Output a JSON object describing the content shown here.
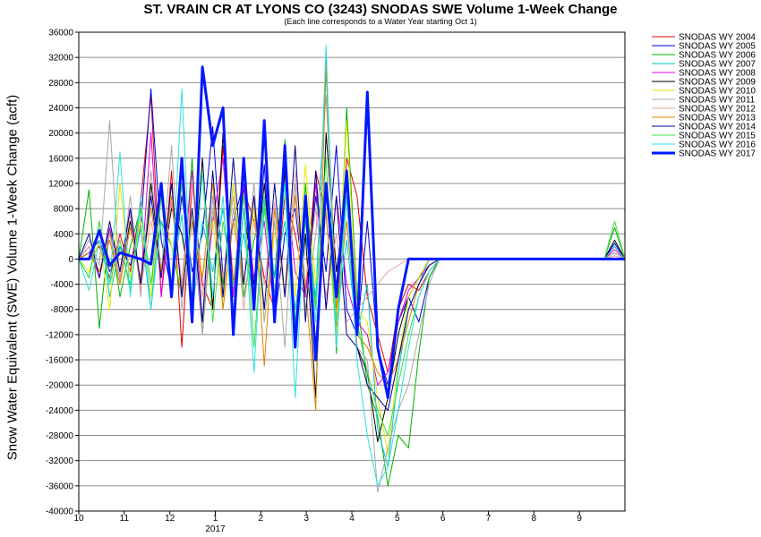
{
  "chart_data": {
    "type": "line",
    "title": "ST. VRAIN CR AT LYONS CO (3243) SNODAS SWE Volume 1-Week Change",
    "subtitle": "(Each line corresponds to a Water Year starting Oct 1)",
    "ylabel": "Snow Water Equivalent (SWE) Volume 1-Week Change (acft)",
    "xlabel": "",
    "ylim": [
      -40000,
      36000
    ],
    "y_ticks": [
      "36000",
      "32000",
      "28000",
      "24000",
      "20000",
      "16000",
      "12000",
      "8000",
      "4000",
      "0",
      "-4000",
      "-8000",
      "-12000",
      "-16000",
      "-20000",
      "-24000",
      "-28000",
      "-32000",
      "-36000",
      "-40000"
    ],
    "x_ticks": [
      "10",
      "11",
      "12",
      "1",
      "2",
      "3",
      "4",
      "5",
      "6",
      "7",
      "8",
      "9"
    ],
    "x_year_label": "2017",
    "grid": true,
    "legend_position": "right",
    "series": [
      {
        "name": "SNODAS WY 2004",
        "color": "#e00000",
        "width": 1,
        "values": [
          0,
          0,
          2000,
          -3000,
          4000,
          -2000,
          9000,
          26000,
          -6000,
          14000,
          -14000,
          12000,
          -4000,
          -8000,
          18000,
          -4000,
          11000,
          6000,
          -3000,
          -8000,
          10000,
          4000,
          -5000,
          14000,
          7000,
          -11000,
          16000,
          10000,
          -6000,
          -12000,
          -18000,
          -8000,
          -4000,
          -5000,
          -2000,
          0,
          0,
          0,
          0,
          0,
          0,
          0,
          0,
          0,
          0,
          0,
          0,
          0,
          0,
          0,
          0,
          0,
          2000,
          0
        ]
      },
      {
        "name": "SNODAS WY 2005",
        "color": "#0000e0",
        "width": 1,
        "values": [
          0,
          1000,
          3000,
          -2000,
          2000,
          -1000,
          5000,
          27000,
          3000,
          -5000,
          10000,
          -2000,
          4000,
          21000,
          -3000,
          6000,
          12000,
          -6000,
          15000,
          -10000,
          4000,
          8000,
          -6000,
          10000,
          -2000,
          18000,
          -8000,
          -12000,
          6000,
          -14000,
          -20000,
          -10000,
          -6000,
          -10000,
          -3000,
          0,
          0,
          0,
          0,
          0,
          0,
          0,
          0,
          0,
          0,
          0,
          0,
          0,
          0,
          0,
          0,
          0,
          2500,
          0
        ]
      },
      {
        "name": "SNODAS WY 2006",
        "color": "#00b000",
        "width": 1,
        "values": [
          0,
          11000,
          -11000,
          5000,
          -6000,
          2000,
          8000,
          -4000,
          6000,
          2000,
          -6000,
          16000,
          -12000,
          8000,
          -4000,
          12000,
          -6000,
          3000,
          9000,
          -3000,
          19000,
          -12000,
          12000,
          -8000,
          32000,
          -15000,
          24000,
          -6000,
          -20000,
          -25000,
          -36000,
          -28000,
          -30000,
          -15000,
          -3000,
          0,
          0,
          0,
          0,
          0,
          0,
          0,
          0,
          0,
          0,
          0,
          0,
          0,
          0,
          0,
          0,
          0,
          5000,
          0
        ]
      },
      {
        "name": "SNODAS WY 2007",
        "color": "#00c8c8",
        "width": 1,
        "values": [
          0,
          -3000,
          6000,
          -6000,
          2000,
          -4000,
          5000,
          -8000,
          10000,
          -4000,
          7000,
          -9000,
          6000,
          -2000,
          8000,
          -5000,
          4000,
          -7000,
          10000,
          -3000,
          6000,
          -8000,
          4000,
          -6000,
          30000,
          -10000,
          3000,
          -12000,
          -4000,
          -27000,
          -33000,
          -18000,
          -8000,
          -4000,
          0,
          0,
          0,
          0,
          0,
          0,
          0,
          0,
          0,
          0,
          0,
          0,
          0,
          0,
          0,
          0,
          0,
          0,
          1000,
          0
        ]
      },
      {
        "name": "SNODAS WY 2008",
        "color": "#e000e0",
        "width": 1,
        "values": [
          0,
          2000,
          -3000,
          5000,
          -2000,
          8000,
          -4000,
          20000,
          -6000,
          9000,
          -4000,
          14000,
          -10000,
          6000,
          16000,
          -6000,
          12000,
          -3000,
          6000,
          -9000,
          14000,
          -2000,
          -6000,
          12000,
          -8000,
          10000,
          -4000,
          -10000,
          -12000,
          -20000,
          -18000,
          -10000,
          -5000,
          -3000,
          -1000,
          0,
          0,
          0,
          0,
          0,
          0,
          0,
          0,
          0,
          0,
          0,
          0,
          0,
          0,
          0,
          0,
          0,
          1500,
          0
        ]
      },
      {
        "name": "SNODAS WY 2009",
        "color": "#000000",
        "width": 1,
        "values": [
          0,
          1000,
          -2000,
          4000,
          -3000,
          6000,
          -4000,
          12000,
          -2000,
          8000,
          4000,
          -6000,
          16000,
          -8000,
          20000,
          -10000,
          8000,
          -4000,
          12000,
          -6000,
          14000,
          -14000,
          4000,
          -22000,
          20000,
          -2000,
          10000,
          -14000,
          -18000,
          -29000,
          -22000,
          -12000,
          -6000,
          -3000,
          0,
          0,
          0,
          0,
          0,
          0,
          0,
          0,
          0,
          0,
          0,
          0,
          0,
          0,
          0,
          0,
          0,
          0,
          3000,
          0
        ]
      },
      {
        "name": "SNODAS WY 2010",
        "color": "#e8e800",
        "width": 1,
        "values": [
          0,
          -2000,
          3000,
          -8000,
          12000,
          -3000,
          6000,
          -6000,
          10000,
          2000,
          -5000,
          8000,
          -3000,
          6000,
          -8000,
          12000,
          -4000,
          8000,
          -10000,
          4000,
          10000,
          -6000,
          15000,
          -4000,
          8000,
          -12000,
          22000,
          -8000,
          -10000,
          -22000,
          -31000,
          -16000,
          -6000,
          -3000,
          0,
          0,
          0,
          0,
          0,
          0,
          0,
          0,
          0,
          0,
          0,
          0,
          0,
          0,
          0,
          0,
          0,
          0,
          1000,
          0
        ]
      },
      {
        "name": "SNODAS WY 2011",
        "color": "#a8a8a8",
        "width": 1,
        "values": [
          0,
          3000,
          -1000,
          22000,
          -4000,
          10000,
          -6000,
          14000,
          -2000,
          18000,
          -8000,
          6000,
          -12000,
          10000,
          -6000,
          8000,
          -4000,
          12000,
          -10000,
          6000,
          -14000,
          12000,
          -8000,
          4000,
          26000,
          -8000,
          10000,
          -14000,
          -16000,
          -37000,
          -30000,
          -24000,
          -20000,
          -12000,
          -4000,
          0,
          0,
          0,
          0,
          0,
          0,
          0,
          0,
          0,
          0,
          0,
          0,
          0,
          0,
          0,
          0,
          0,
          1000,
          0
        ]
      },
      {
        "name": "SNODAS WY 2012",
        "color": "#e8a0a0",
        "width": 1,
        "values": [
          0,
          2000,
          -2000,
          4000,
          -3000,
          7000,
          -5000,
          6000,
          -2000,
          9000,
          -4000,
          12000,
          -6000,
          8000,
          -3000,
          10000,
          -8000,
          6000,
          -4000,
          9000,
          -6000,
          14000,
          -4000,
          8000,
          -6000,
          4000,
          -10000,
          -8000,
          -6000,
          -4000,
          -2000,
          -1000,
          0,
          0,
          0,
          0,
          0,
          0,
          0,
          0,
          0,
          0,
          0,
          0,
          0,
          0,
          0,
          0,
          0,
          0,
          0,
          0,
          500,
          0
        ]
      },
      {
        "name": "SNODAS WY 2013",
        "color": "#e08000",
        "width": 1,
        "values": [
          0,
          1000,
          -2000,
          3000,
          -4000,
          5000,
          -3000,
          8000,
          -2000,
          10000,
          -5000,
          6000,
          -3000,
          12000,
          -8000,
          6000,
          -4000,
          10000,
          -17000,
          8000,
          -6000,
          10000,
          -4000,
          -24000,
          31000,
          -8000,
          6000,
          -12000,
          -14000,
          -18000,
          -20000,
          -16000,
          -10000,
          -4000,
          -1000,
          0,
          0,
          0,
          0,
          0,
          0,
          0,
          0,
          0,
          0,
          0,
          0,
          0,
          0,
          0,
          0,
          0,
          0,
          0
        ]
      },
      {
        "name": "SNODAS WY 2014",
        "color": "#000090",
        "width": 1,
        "values": [
          0,
          4000,
          -3000,
          6000,
          -2000,
          8000,
          -4000,
          10000,
          -3000,
          12000,
          -6000,
          8000,
          -10000,
          14000,
          -6000,
          16000,
          -4000,
          10000,
          -8000,
          12000,
          -6000,
          18000,
          -10000,
          14000,
          -8000,
          10000,
          -12000,
          -14000,
          -20000,
          -22000,
          -24000,
          -16000,
          -8000,
          -4000,
          -1000,
          0,
          0,
          0,
          0,
          0,
          0,
          0,
          0,
          0,
          0,
          0,
          0,
          0,
          0,
          0,
          0,
          0,
          2000,
          0
        ]
      },
      {
        "name": "SNODAS WY 2015",
        "color": "#40e040",
        "width": 1,
        "values": [
          0,
          -3000,
          6000,
          -4000,
          3000,
          -5000,
          8000,
          -4000,
          10000,
          -6000,
          12000,
          -8000,
          14000,
          -10000,
          6000,
          -4000,
          10000,
          -14000,
          8000,
          -6000,
          12000,
          -10000,
          6000,
          -8000,
          16000,
          -14000,
          12000,
          -10000,
          -18000,
          -24000,
          -28000,
          -20000,
          -12000,
          -6000,
          -2000,
          0,
          0,
          0,
          0,
          0,
          0,
          0,
          0,
          0,
          0,
          0,
          0,
          0,
          0,
          0,
          0,
          0,
          6000,
          0
        ]
      },
      {
        "name": "SNODAS WY 2016",
        "color": "#30e0e0",
        "width": 1,
        "values": [
          0,
          -5000,
          3000,
          -4000,
          17000,
          -6000,
          10000,
          -8000,
          6000,
          -4000,
          27000,
          -8000,
          14000,
          -6000,
          10000,
          -12000,
          8000,
          -18000,
          10000,
          -6000,
          12000,
          -22000,
          8000,
          -10000,
          34000,
          -14000,
          10000,
          -16000,
          -28000,
          -36000,
          -33000,
          -24000,
          -14000,
          -6000,
          -2000,
          0,
          0,
          0,
          0,
          0,
          0,
          0,
          0,
          0,
          0,
          0,
          0,
          0,
          0,
          0,
          0,
          0,
          2000,
          0
        ]
      },
      {
        "name": "SNODAS WY 2017",
        "color": "#0018ff",
        "width": 3,
        "values": [
          0,
          0,
          4500,
          -1000,
          1000,
          500,
          0,
          -800,
          12000,
          -6000,
          16000,
          -10000,
          30500,
          18000,
          24000,
          -12000,
          16000,
          -8000,
          22000,
          -10000,
          18000,
          -14000,
          10000,
          -16000,
          12000,
          -6000,
          14000,
          -12000,
          26500,
          -14000,
          -22000,
          -8000,
          0,
          0,
          0,
          0,
          0,
          0,
          0,
          0,
          0,
          0,
          0,
          0,
          0,
          0,
          0,
          0,
          0,
          0,
          0,
          0,
          0,
          0
        ]
      }
    ]
  }
}
